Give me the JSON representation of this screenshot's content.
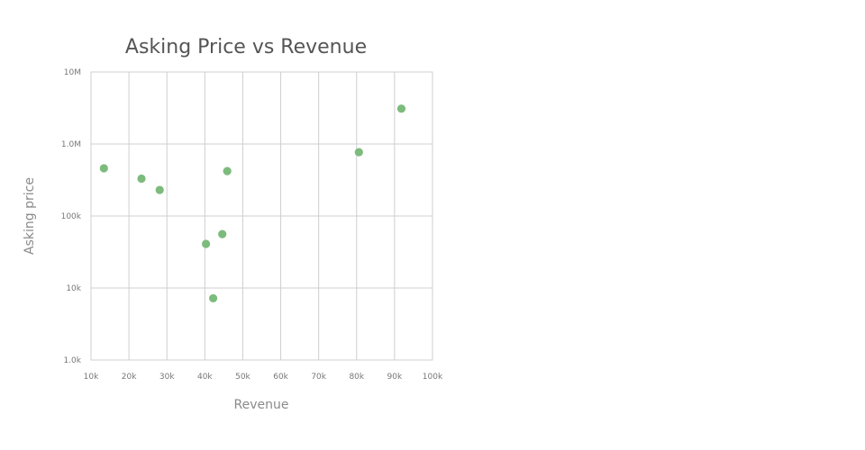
{
  "chart_data": {
    "type": "scatter",
    "title": "Asking Price vs Revenue",
    "xlabel": "Revenue",
    "ylabel": "Asking price",
    "xlim": [
      10000,
      100000
    ],
    "ylim": [
      1000,
      10000000
    ],
    "yscale": "log",
    "grid": true,
    "legend": "none",
    "marker_color": "#7cbb7c",
    "x_ticks": [
      {
        "value": 10000,
        "label": "10k"
      },
      {
        "value": 20000,
        "label": "20k"
      },
      {
        "value": 30000,
        "label": "30k"
      },
      {
        "value": 40000,
        "label": "40k"
      },
      {
        "value": 50000,
        "label": "50k"
      },
      {
        "value": 60000,
        "label": "60k"
      },
      {
        "value": 70000,
        "label": "70k"
      },
      {
        "value": 80000,
        "label": "80k"
      },
      {
        "value": 90000,
        "label": "90k"
      },
      {
        "value": 100000,
        "label": "100k"
      }
    ],
    "y_ticks": [
      {
        "value": 1000,
        "label": "1.0k"
      },
      {
        "value": 10000,
        "label": "10k"
      },
      {
        "value": 100000,
        "label": "100k"
      },
      {
        "value": 1000000,
        "label": "1.0M"
      },
      {
        "value": 10000000,
        "label": "10M"
      }
    ],
    "series": [
      {
        "points": [
          {
            "x": 13400,
            "y": 460000
          },
          {
            "x": 23300,
            "y": 330000
          },
          {
            "x": 28100,
            "y": 230000
          },
          {
            "x": 40300,
            "y": 41000
          },
          {
            "x": 42200,
            "y": 7200
          },
          {
            "x": 44600,
            "y": 56000
          },
          {
            "x": 45900,
            "y": 420000
          },
          {
            "x": 80600,
            "y": 770000
          },
          {
            "x": 91800,
            "y": 3100000
          }
        ]
      }
    ]
  }
}
